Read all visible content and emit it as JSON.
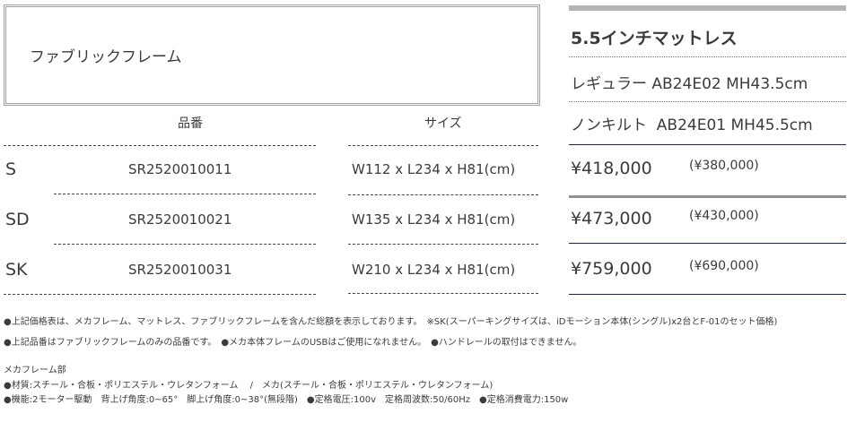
{
  "frame": {
    "title": "ファブリックフレーム"
  },
  "headers": {
    "code": "品番",
    "size": "サイズ"
  },
  "rows": [
    {
      "size": "S",
      "code": "SR2520010011",
      "dimensions": "W112 x L234 x H81(cm)",
      "price": "¥418,000",
      "price_excl_tax": "(¥380,000)"
    },
    {
      "size": "SD",
      "code": "SR2520010021",
      "dimensions": "W135 x L234 x H81(cm)",
      "price": "¥473,000",
      "price_excl_tax": "(¥430,000)"
    },
    {
      "size": "SK",
      "code": "SR2520010031",
      "dimensions": "W210 x L234 x H81(cm)",
      "price": "¥759,000",
      "price_excl_tax": "(¥690,000)"
    }
  ],
  "mattress": {
    "title": "5.5インチマットレス",
    "regular": "レギュラー AB24E02 MH43.5cm",
    "nonquilt": "ノンキルト  AB24E01 MH45.5cm"
  },
  "notes": {
    "line1": "●上記価格表は、メカフレーム、マットレス、ファブリックフレームを含んだ総額を表示しております。　※SK(スーパーキングサイズは、iDモーション本体(シングル)x2台とF-01のセット価格)",
    "line2": "●上記品番はファブリックフレームのみの品番です。　●メカ本体フレームのUSBはご使用になれません。　●ハンドレールの取付はできません。",
    "section_title": "メカフレーム部",
    "material": "●材質:スチール・合板・ポリエステル・ウレタンフォーム　 /　メカ(スチール・合板・ポリエステル・ウレタンフォーム)",
    "function": "●機能:2モーター駆動　背上げ角度:0~65°　脚上げ角度:0~38°(無段階)　●定格電圧:100v　定格周波数:50/60Hz　●定格消費電力:150w"
  },
  "colors": {
    "text": "#3e3a39",
    "navy_rule": "#1e2540",
    "grey_rule": "#8e9196"
  }
}
